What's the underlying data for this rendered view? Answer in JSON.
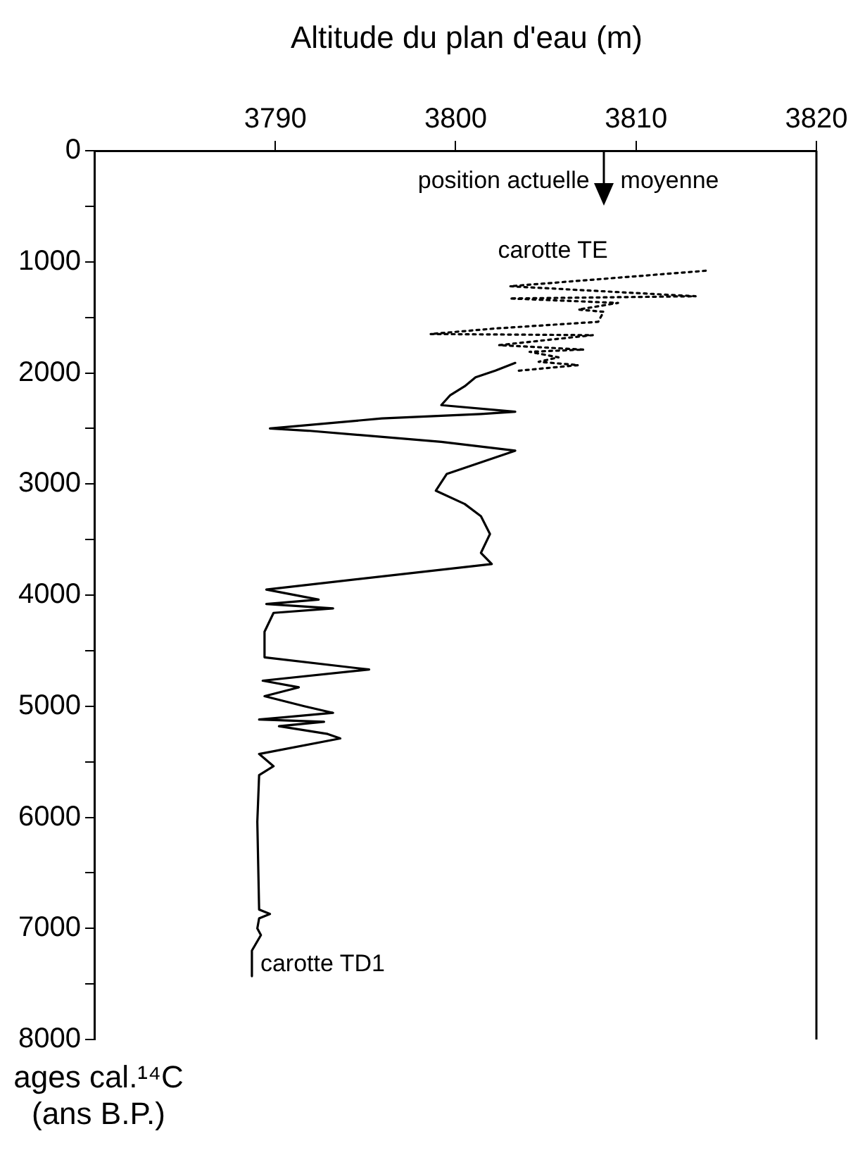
{
  "chart_data": {
    "type": "line",
    "xlabel": "Altitude du plan d'eau (m)",
    "ylabel": "ages cal.¹⁴C (ans B.P.)",
    "xlim": [
      3780,
      3820
    ],
    "xticks": [
      3790,
      3800,
      3810,
      3820
    ],
    "ylim": [
      8000,
      0
    ],
    "yticks": [
      0,
      {
        "value": 500,
        "label": null
      },
      1000,
      {
        "value": 1500,
        "label": null
      },
      2000,
      {
        "value": 2500,
        "label": null
      },
      3000,
      {
        "value": 3500,
        "label": null
      },
      4000,
      {
        "value": 4500,
        "label": null
      },
      5000,
      {
        "value": 5500,
        "label": null
      },
      6000,
      {
        "value": 6500,
        "label": null
      },
      7000,
      {
        "value": 7500,
        "label": null
      },
      8000
    ],
    "grid": false,
    "legend": false,
    "marker": "none",
    "series": [
      {
        "name": "carotte TD1",
        "color": "#000000",
        "line_style": "solid",
        "x": [
          3788.7,
          3788.7,
          3789.2,
          3789.0,
          3789.1,
          3789.7,
          3789.1,
          3789.0,
          3789.1,
          3789.9,
          3789.1,
          3793.6,
          3792.9,
          3790.2,
          3792.7,
          3789.1,
          3793.2,
          3791.6,
          3789.4,
          3791.3,
          3789.3,
          3795.2,
          3789.4,
          3789.4,
          3789.9,
          3793.2,
          3789.5,
          3792.4,
          3789.5,
          3802.0,
          3801.4,
          3801.9,
          3801.4,
          3800.5,
          3798.9,
          3799.5,
          3803.3,
          3799.2,
          3791.8,
          3789.7,
          3795.9,
          3801.4,
          3803.3,
          3799.2,
          3799.7,
          3800.5,
          3801.1,
          3802.2,
          3803.3
        ],
        "values": [
          7430,
          7200,
          7060,
          7000,
          6910,
          6870,
          6830,
          6040,
          5620,
          5540,
          5430,
          5290,
          5250,
          5180,
          5140,
          5120,
          5060,
          5000,
          4910,
          4830,
          4770,
          4670,
          4560,
          4330,
          4160,
          4120,
          4080,
          4040,
          3950,
          3720,
          3620,
          3450,
          3290,
          3180,
          3060,
          2910,
          2700,
          2620,
          2520,
          2500,
          2410,
          2370,
          2350,
          2290,
          2200,
          2120,
          2040,
          1980,
          1910
        ]
      },
      {
        "name": "carotte TE",
        "color": "#000000",
        "line_style": "dotted",
        "x": [
          3803.5,
          3806.8,
          3804.6,
          3805.7,
          3804.1,
          3807.1,
          3802.4,
          3807.6,
          3798.6,
          3802.2,
          3807.9,
          3808.2,
          3806.8,
          3809.0,
          3803.0,
          3813.3,
          3803.0,
          3813.9
        ],
        "values": [
          1980,
          1930,
          1900,
          1860,
          1810,
          1790,
          1750,
          1660,
          1650,
          1600,
          1540,
          1450,
          1430,
          1370,
          1330,
          1310,
          1220,
          1080
        ]
      }
    ],
    "ref_lines": [
      {
        "axis": "x",
        "value": 3808.2,
        "label": "position actuelle"
      }
    ],
    "annotations": [
      "moyenne"
    ]
  }
}
